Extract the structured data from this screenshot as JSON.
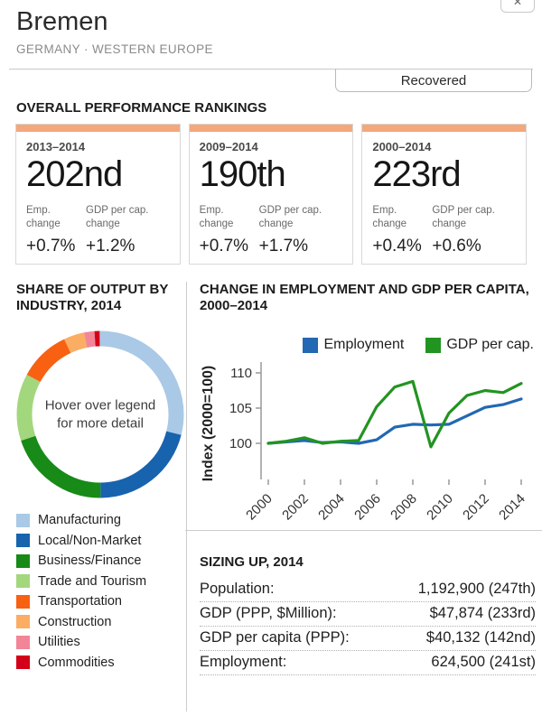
{
  "header": {
    "title": "Bremen",
    "subtitle": "GERMANY · WESTERN EUROPE",
    "status_label": "Recovered"
  },
  "colors": {
    "card_accent": "#f5a77c",
    "employment_line": "#2268b2",
    "gdp_line": "#229421"
  },
  "rankings": {
    "section_title": "OVERALL PERFORMANCE RANKINGS",
    "cards": [
      {
        "period": "2013–2014",
        "rank": "202nd",
        "emp_label": "Emp. change",
        "gdp_label": "GDP per cap. change",
        "emp_change": "+0.7%",
        "gdp_change": "+1.2%"
      },
      {
        "period": "2009–2014",
        "rank": "190th",
        "emp_label": "Emp. change",
        "gdp_label": "GDP per cap. change",
        "emp_change": "+0.7%",
        "gdp_change": "+1.7%"
      },
      {
        "period": "2000–2014",
        "rank": "223rd",
        "emp_label": "Emp. change",
        "gdp_label": "GDP per cap. change",
        "emp_change": "+0.4%",
        "gdp_change": "+0.6%"
      }
    ]
  },
  "industry_section": {
    "title": "SHARE OF OUTPUT BY INDUSTRY, 2014",
    "center_text": "Hover over legend for more detail"
  },
  "chart_section": {
    "title": "CHANGE IN EMPLOYMENT AND GDP PER CAPITA, 2000–2014",
    "ylabel": "Index (2000=100)"
  },
  "sizing": {
    "title": "SIZING UP, 2014",
    "rows": [
      {
        "label": "Population:",
        "value": "1,192,900 (247th)"
      },
      {
        "label": "GDP (PPP, $Million):",
        "value": "$47,874 (233rd)"
      },
      {
        "label": "GDP per capita (PPP):",
        "value": "$40,132 (142nd)"
      },
      {
        "label": "Employment:",
        "value": "624,500 (241st)"
      }
    ]
  },
  "chart_data": [
    {
      "type": "pie",
      "donut": true,
      "title": "SHARE OF OUTPUT BY INDUSTRY, 2014",
      "labels": [
        "Manufacturing",
        "Local/Non-Market",
        "Business/Finance",
        "Trade and Tourism",
        "Transportation",
        "Construction",
        "Utilities",
        "Commodities"
      ],
      "values": [
        29,
        21,
        20,
        13,
        10,
        4,
        2,
        1
      ],
      "colors": [
        "#a9c9e6",
        "#1763ae",
        "#188a18",
        "#a3d77d",
        "#f86112",
        "#fbad63",
        "#f28598",
        "#d40019"
      ],
      "annotation": "Hover over legend for more detail",
      "legend_position": "bottom"
    },
    {
      "type": "line",
      "title": "CHANGE IN EMPLOYMENT AND GDP PER CAPITA, 2000–2014",
      "ylabel": "Index (2000=100)",
      "x": [
        2000,
        2001,
        2002,
        2003,
        2004,
        2005,
        2006,
        2007,
        2008,
        2009,
        2010,
        2011,
        2012,
        2013,
        2014
      ],
      "series": [
        {
          "name": "Employment",
          "color": "#2268b2",
          "values": [
            100,
            100.2,
            100.4,
            100.1,
            100.2,
            100.0,
            100.5,
            102.3,
            102.7,
            102.6,
            102.7,
            103.9,
            105.1,
            105.5,
            106.3
          ]
        },
        {
          "name": "GDP per cap.",
          "color": "#229421",
          "values": [
            100,
            100.3,
            100.8,
            100.0,
            100.3,
            100.4,
            105.2,
            108.0,
            108.8,
            99.5,
            104.3,
            106.8,
            107.5,
            107.2,
            108.5
          ]
        }
      ],
      "yticks": [
        100,
        105,
        110
      ],
      "xticks": [
        2000,
        2002,
        2004,
        2006,
        2008,
        2010,
        2012,
        2014
      ],
      "ylim": [
        96,
        112
      ],
      "grid": false,
      "legend_position": "top-right"
    }
  ]
}
